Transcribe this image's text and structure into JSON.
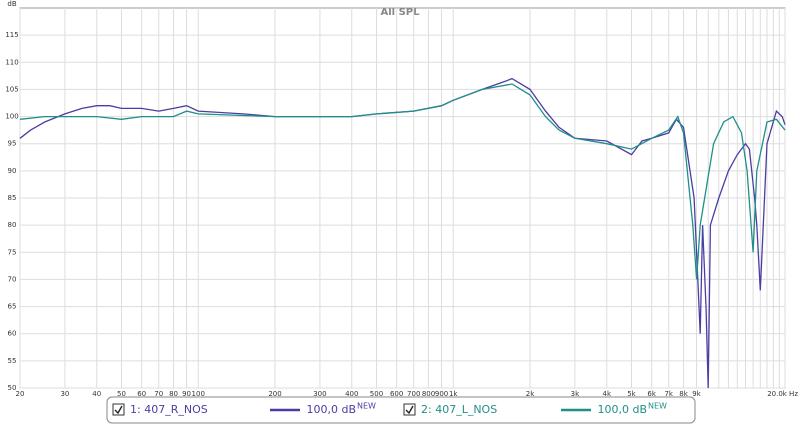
{
  "chart_data": {
    "type": "line",
    "title": "All SPL",
    "ylabel": "dB",
    "xscale": "log",
    "grid": true,
    "xlim": [
      20,
      20000
    ],
    "ylim": [
      50,
      120
    ],
    "xticks": [
      20,
      30,
      40,
      50,
      60,
      70,
      80,
      90,
      100,
      200,
      300,
      400,
      500,
      600,
      700,
      800,
      900,
      {
        "value": 1000,
        "label": "1k"
      },
      {
        "value": 2000,
        "label": "2k"
      },
      {
        "value": 3000,
        "label": "3k"
      },
      {
        "value": 4000,
        "label": "4k"
      },
      {
        "value": 5000,
        "label": "5k"
      },
      {
        "value": 6000,
        "label": "6k"
      },
      {
        "value": 7000,
        "label": "7k"
      },
      {
        "value": 8000,
        "label": "8k"
      },
      {
        "value": 9000,
        "label": "9k"
      },
      {
        "value": 20000,
        "label": "20.0k Hz"
      }
    ],
    "x_minor_ticks": [
      10000,
      11000,
      12000,
      13000,
      14000,
      15000,
      16000,
      17000,
      18000,
      19000
    ],
    "yticks": [
      50,
      55,
      60,
      65,
      70,
      75,
      80,
      85,
      90,
      95,
      100,
      105,
      110,
      115
    ],
    "series": [
      {
        "name": "1: 407_R_NOS",
        "color": "#4a3ea3",
        "level_label": "100,0 dB",
        "badge": "NEW",
        "x": [
          20,
          22,
          25,
          30,
          35,
          40,
          45,
          50,
          60,
          70,
          80,
          90,
          100,
          150,
          200,
          300,
          400,
          500,
          700,
          900,
          1000,
          1300,
          1600,
          1700,
          2000,
          2300,
          2600,
          3000,
          4000,
          5000,
          5500,
          6000,
          7000,
          7500,
          8000,
          8800,
          9100,
          9300,
          9500,
          9800,
          10000,
          10200,
          11000,
          12000,
          13000,
          14000,
          14500,
          15200,
          15500,
          16000,
          17000,
          18500,
          19500,
          20000
        ],
        "values": [
          96,
          97.5,
          99,
          100.5,
          101.5,
          102,
          102,
          101.5,
          101.5,
          101,
          101.5,
          102,
          101,
          100.5,
          100,
          100,
          100,
          100.5,
          101,
          102,
          103,
          105,
          106.5,
          107,
          105,
          101,
          98,
          96,
          95.5,
          93,
          95.5,
          96,
          97,
          99.5,
          98,
          85,
          70,
          60,
          80,
          65,
          50,
          80,
          85,
          90,
          93,
          95,
          94,
          85,
          80,
          68,
          95,
          101,
          100,
          98.5
        ]
      },
      {
        "name": "2: 407_L_NOS",
        "color": "#1f8f88",
        "level_label": "100,0 dB",
        "badge": "NEW",
        "x": [
          20,
          25,
          30,
          40,
          50,
          60,
          80,
          90,
          100,
          150,
          200,
          300,
          400,
          500,
          700,
          900,
          1000,
          1300,
          1700,
          2000,
          2300,
          2600,
          3000,
          4000,
          5000,
          6000,
          7000,
          7600,
          8000,
          8700,
          9000,
          9300,
          10500,
          11500,
          12500,
          13500,
          14200,
          15000,
          15500,
          17000,
          18500,
          20000
        ],
        "values": [
          99.5,
          100,
          100,
          100,
          99.5,
          100,
          100,
          101,
          100.5,
          100.2,
          100,
          100,
          100,
          100.5,
          101,
          102,
          103,
          105,
          106,
          104,
          100,
          97.5,
          96,
          95,
          94,
          96,
          97.5,
          100,
          97,
          80,
          70,
          80,
          95,
          99,
          100,
          97,
          90,
          75,
          90,
          99,
          99.5,
          97.5
        ]
      }
    ]
  }
}
